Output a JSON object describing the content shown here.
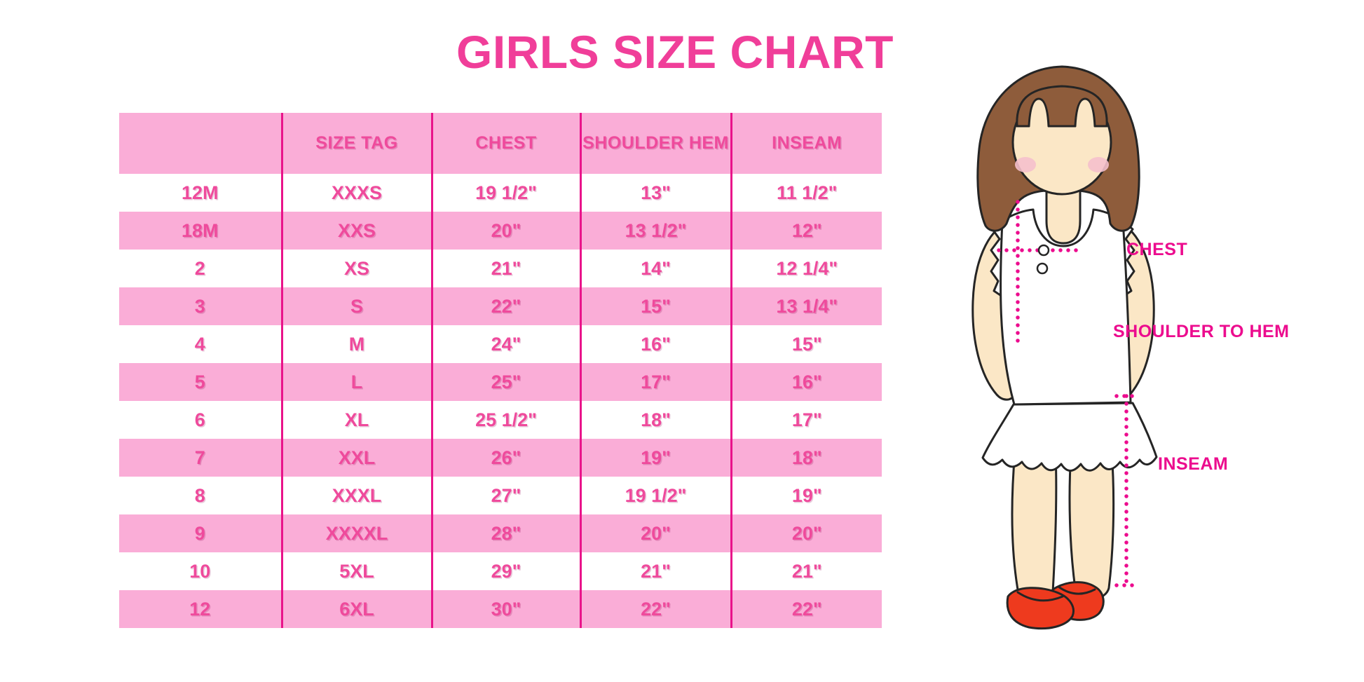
{
  "title": "GIRLS SIZE CHART",
  "figure_labels": {
    "chest": "CHEST",
    "shoulder_to_hem": "SHOULDER TO HEM",
    "inseam": "INSEAM"
  },
  "chart_data": {
    "type": "table",
    "title": "GIRLS SIZE CHART",
    "columns": [
      "",
      "SIZE TAG",
      "CHEST",
      "SHOULDER HEM",
      "INSEAM"
    ],
    "rows": [
      [
        "12M",
        "XXXS",
        "19 1/2\"",
        "13\"",
        "11 1/2\""
      ],
      [
        "18M",
        "XXS",
        "20\"",
        "13 1/2\"",
        "12\""
      ],
      [
        "2",
        "XS",
        "21\"",
        "14\"",
        "12 1/4\""
      ],
      [
        "3",
        "S",
        "22\"",
        "15\"",
        "13 1/4\""
      ],
      [
        "4",
        "M",
        "24\"",
        "16\"",
        "15\""
      ],
      [
        "5",
        "L",
        "25\"",
        "17\"",
        "16\""
      ],
      [
        "6",
        "XL",
        "25 1/2\"",
        "18\"",
        "17\""
      ],
      [
        "7",
        "XXL",
        "26\"",
        "19\"",
        "18\""
      ],
      [
        "8",
        "XXXL",
        "27\"",
        "19 1/2\"",
        "19\""
      ],
      [
        "9",
        "XXXXL",
        "28\"",
        "20\"",
        "20\""
      ],
      [
        "10",
        "5XL",
        "29\"",
        "21\"",
        "21\""
      ],
      [
        "12",
        "6XL",
        "30\"",
        "22\"",
        "22\""
      ]
    ],
    "legend_position": "right",
    "row_striping": [
      "white",
      "pink"
    ]
  },
  "colors": {
    "title_pink": "#F03E99",
    "table_text_pink": "#EF4A9C",
    "row_pink": "#FAADD7",
    "divider_magenta": "#E9138A",
    "label_magenta": "#EC0C8E",
    "hair_brown": "#8E5C3B",
    "skin": "#FBE7C6",
    "shoe_red": "#EE3A1E",
    "background": "#FFFFFF"
  }
}
